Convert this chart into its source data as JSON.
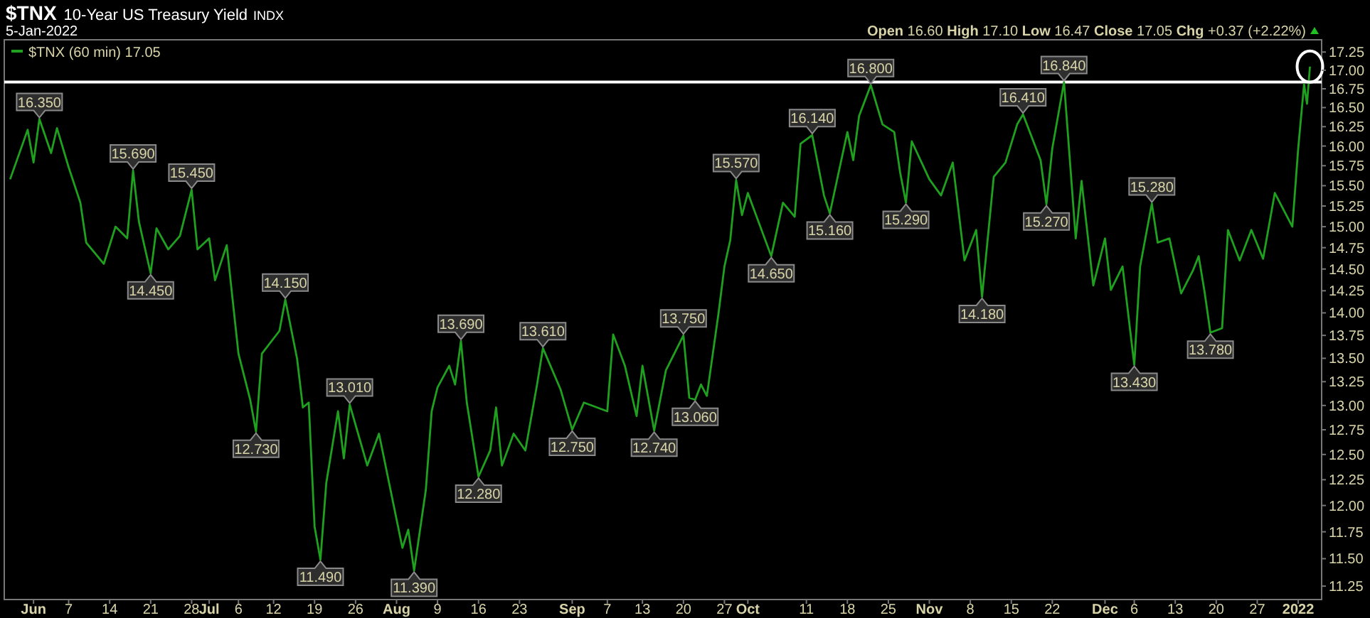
{
  "chart_data": {
    "type": "line",
    "title": "$TNX",
    "subtitle": "10-Year US Treasury Yield",
    "annotations": [
      "INDX",
      "5-Jan-2022",
      "Open 16.60 High 17.10 Low 16.47 Close 17.05 Chg +0.37 (+2.22%)",
      {
        "text": "16.350",
        "x": "2021-06-02",
        "y": 16.35
      },
      {
        "text": "15.690",
        "x": "2021-06-18",
        "y": 15.69
      },
      {
        "text": "15.450",
        "x": "2021-06-28",
        "y": 15.45
      },
      {
        "text": "14.450",
        "x": "2021-06-21",
        "y": 14.45
      },
      {
        "text": "14.150",
        "x": "2021-07-14",
        "y": 14.15
      },
      {
        "text": "12.730",
        "x": "2021-07-09",
        "y": 12.73
      },
      {
        "text": "13.010",
        "x": "2021-07-25",
        "y": 13.01
      },
      {
        "text": "11.490",
        "x": "2021-07-20",
        "y": 11.49
      },
      {
        "text": "11.390",
        "x": "2021-08-05",
        "y": 11.39
      },
      {
        "text": "13.690",
        "x": "2021-08-13",
        "y": 13.69
      },
      {
        "text": "12.280",
        "x": "2021-08-16",
        "y": 12.28
      },
      {
        "text": "13.610",
        "x": "2021-08-27",
        "y": 13.61
      },
      {
        "text": "12.750",
        "x": "2021-09-01",
        "y": 12.75
      },
      {
        "text": "12.740",
        "x": "2021-09-15",
        "y": 12.74
      },
      {
        "text": "13.750",
        "x": "2021-09-20",
        "y": 13.75
      },
      {
        "text": "13.060",
        "x": "2021-09-22",
        "y": 13.06
      },
      {
        "text": "15.570",
        "x": "2021-09-29",
        "y": 15.57
      },
      {
        "text": "14.650",
        "x": "2021-10-05",
        "y": 14.65
      },
      {
        "text": "16.140",
        "x": "2021-10-12",
        "y": 16.14
      },
      {
        "text": "15.160",
        "x": "2021-10-15",
        "y": 15.16
      },
      {
        "text": "16.800",
        "x": "2021-10-22",
        "y": 16.8
      },
      {
        "text": "15.290",
        "x": "2021-10-28",
        "y": 15.29
      },
      {
        "text": "14.180",
        "x": "2021-11-10",
        "y": 14.18
      },
      {
        "text": "16.410",
        "x": "2021-11-17",
        "y": 16.41
      },
      {
        "text": "15.270",
        "x": "2021-11-21",
        "y": 15.27
      },
      {
        "text": "16.840",
        "x": "2021-11-24",
        "y": 16.84
      },
      {
        "text": "13.430",
        "x": "2021-12-06",
        "y": 13.43
      },
      {
        "text": "15.280",
        "x": "2021-12-09",
        "y": 15.28
      },
      {
        "text": "13.780",
        "x": "2021-12-19",
        "y": 13.78
      }
    ],
    "x": [
      "2021-05-28",
      "2021-05-31",
      "2021-06-01",
      "2021-06-02",
      "2021-06-04",
      "2021-06-05",
      "2021-06-07",
      "2021-06-09",
      "2021-06-10",
      "2021-06-13",
      "2021-06-15",
      "2021-06-17",
      "2021-06-18",
      "2021-06-19",
      "2021-06-21",
      "2021-06-22",
      "2021-06-24",
      "2021-06-26",
      "2021-06-28",
      "2021-06-29",
      "2021-07-01",
      "2021-07-02",
      "2021-07-04",
      "2021-07-06",
      "2021-07-08",
      "2021-07-09",
      "2021-07-10",
      "2021-07-13",
      "2021-07-14",
      "2021-07-16",
      "2021-07-17",
      "2021-07-18",
      "2021-07-19",
      "2021-07-20",
      "2021-07-21",
      "2021-07-23",
      "2021-07-24",
      "2021-07-25",
      "2021-07-28",
      "2021-07-30",
      "2021-08-03",
      "2021-08-04",
      "2021-08-05",
      "2021-08-07",
      "2021-08-08",
      "2021-08-09",
      "2021-08-11",
      "2021-08-12",
      "2021-08-13",
      "2021-08-14",
      "2021-08-16",
      "2021-08-18",
      "2021-08-19",
      "2021-08-20",
      "2021-08-22",
      "2021-08-24",
      "2021-08-26",
      "2021-08-27",
      "2021-08-30",
      "2021-09-01",
      "2021-09-03",
      "2021-09-07",
      "2021-09-08",
      "2021-09-10",
      "2021-09-12",
      "2021-09-13",
      "2021-09-15",
      "2021-09-17",
      "2021-09-20",
      "2021-09-21",
      "2021-09-22",
      "2021-09-23",
      "2021-09-24",
      "2021-09-26",
      "2021-09-27",
      "2021-09-28",
      "2021-09-29",
      "2021-09-30",
      "2021-10-01",
      "2021-10-05",
      "2021-10-07",
      "2021-10-09",
      "2021-10-10",
      "2021-10-12",
      "2021-10-14",
      "2021-10-15",
      "2021-10-18",
      "2021-10-19",
      "2021-10-20",
      "2021-10-22",
      "2021-10-24",
      "2021-10-26",
      "2021-10-27",
      "2021-10-28",
      "2021-10-29",
      "2021-11-01",
      "2021-11-03",
      "2021-11-05",
      "2021-11-07",
      "2021-11-09",
      "2021-11-10",
      "2021-11-12",
      "2021-11-14",
      "2021-11-16",
      "2021-11-17",
      "2021-11-20",
      "2021-11-21",
      "2021-11-22",
      "2021-11-24",
      "2021-11-26",
      "2021-11-27",
      "2021-11-29",
      "2021-12-01",
      "2021-12-02",
      "2021-12-04",
      "2021-12-06",
      "2021-12-07",
      "2021-12-09",
      "2021-12-10",
      "2021-12-12",
      "2021-12-14",
      "2021-12-16",
      "2021-12-17",
      "2021-12-18",
      "2021-12-19",
      "2021-12-21",
      "2021-12-22",
      "2021-12-24",
      "2021-12-26",
      "2021-12-28",
      "2021-12-30",
      "2022-01-02",
      "2022-01-03",
      "2022-01-04",
      "2022-01-04T12:00",
      "2022-01-05"
    ],
    "series": [
      {
        "name": "$TNX (60 min) 17.05",
        "color": "#1fa01f",
        "values": [
          15.58,
          16.21,
          15.79,
          16.35,
          15.91,
          16.23,
          15.73,
          15.29,
          14.81,
          14.56,
          15.0,
          14.86,
          15.69,
          15.06,
          14.45,
          14.98,
          14.73,
          14.89,
          15.45,
          14.73,
          14.86,
          14.37,
          14.78,
          13.55,
          13.06,
          12.73,
          13.55,
          13.8,
          14.15,
          13.5,
          12.98,
          13.03,
          11.8,
          11.49,
          12.22,
          12.94,
          12.46,
          13.01,
          12.39,
          12.71,
          11.6,
          11.77,
          11.39,
          12.15,
          12.94,
          13.19,
          13.42,
          13.22,
          13.69,
          13.03,
          12.28,
          12.54,
          12.98,
          12.39,
          12.71,
          12.54,
          13.22,
          13.61,
          13.17,
          12.75,
          13.03,
          12.94,
          13.76,
          13.42,
          12.89,
          13.42,
          12.74,
          13.37,
          13.75,
          13.08,
          13.06,
          13.22,
          13.1,
          14.0,
          14.53,
          14.84,
          15.57,
          15.14,
          15.41,
          14.65,
          15.29,
          15.12,
          16.03,
          16.14,
          15.38,
          15.16,
          16.18,
          15.82,
          16.39,
          16.8,
          16.28,
          16.18,
          15.67,
          15.29,
          16.06,
          15.58,
          15.38,
          15.79,
          14.6,
          14.96,
          14.18,
          15.61,
          15.79,
          16.28,
          16.41,
          15.82,
          15.27,
          15.97,
          16.84,
          14.86,
          15.56,
          14.31,
          14.86,
          14.26,
          14.53,
          13.43,
          14.53,
          15.28,
          14.81,
          14.86,
          14.22,
          14.48,
          14.65,
          14.24,
          13.78,
          13.83,
          14.96,
          14.6,
          14.96,
          14.62,
          15.41,
          15.0,
          15.97,
          16.81,
          16.55,
          17.05
        ]
      }
    ],
    "xlim": [
      "2021-05-27",
      "2022-01-07"
    ],
    "xticks": [
      {
        "value": "2021-06-01",
        "label": "Jun"
      },
      {
        "value": "2021-06-07",
        "label": "7"
      },
      {
        "value": "2021-06-14",
        "label": "14"
      },
      {
        "value": "2021-06-21",
        "label": "21"
      },
      {
        "value": "2021-06-28",
        "label": "28"
      },
      {
        "value": "2021-07-01",
        "label": "Jul"
      },
      {
        "value": "2021-07-06",
        "label": "6"
      },
      {
        "value": "2021-07-12",
        "label": "12"
      },
      {
        "value": "2021-07-19",
        "label": "19"
      },
      {
        "value": "2021-07-26",
        "label": "26"
      },
      {
        "value": "2021-08-02",
        "label": "Aug"
      },
      {
        "value": "2021-08-09",
        "label": "9"
      },
      {
        "value": "2021-08-16",
        "label": "16"
      },
      {
        "value": "2021-08-23",
        "label": "23"
      },
      {
        "value": "2021-09-01",
        "label": "Sep"
      },
      {
        "value": "2021-09-07",
        "label": "7"
      },
      {
        "value": "2021-09-13",
        "label": "13"
      },
      {
        "value": "2021-09-20",
        "label": "20"
      },
      {
        "value": "2021-09-27",
        "label": "27"
      },
      {
        "value": "2021-10-01",
        "label": "Oct"
      },
      {
        "value": "2021-10-11",
        "label": "11"
      },
      {
        "value": "2021-10-18",
        "label": "18"
      },
      {
        "value": "2021-10-25",
        "label": "25"
      },
      {
        "value": "2021-11-01",
        "label": "Nov"
      },
      {
        "value": "2021-11-08",
        "label": "8"
      },
      {
        "value": "2021-11-15",
        "label": "15"
      },
      {
        "value": "2021-11-22",
        "label": "22"
      },
      {
        "value": "2021-12-01",
        "label": "Dec"
      },
      {
        "value": "2021-12-06",
        "label": "6"
      },
      {
        "value": "2021-12-13",
        "label": "13"
      },
      {
        "value": "2021-12-20",
        "label": "20"
      },
      {
        "value": "2021-12-27",
        "label": "27"
      },
      {
        "value": "2022-01-03",
        "label": "2022"
      }
    ],
    "ylim": [
      11.13,
      17.42
    ],
    "log": true,
    "yticks": [
      11.25,
      {
        "value": 11.5,
        "label": "11.50"
      },
      11.75,
      {
        "value": 12,
        "label": "12.00"
      },
      12.25,
      {
        "value": 12.5,
        "label": "12.50"
      },
      12.75,
      {
        "value": 13,
        "label": "13.00"
      },
      13.25,
      {
        "value": 13.5,
        "label": "13.50"
      },
      13.75,
      {
        "value": 14,
        "label": "14.00"
      },
      14.25,
      {
        "value": 14.5,
        "label": "14.50"
      },
      14.75,
      {
        "value": 15,
        "label": "15.00"
      },
      15.25,
      {
        "value": 15.5,
        "label": "15.50"
      },
      15.75,
      {
        "value": 16,
        "label": "16.00"
      },
      16.25,
      {
        "value": 16.5,
        "label": "16.50"
      },
      16.75,
      {
        "value": 17,
        "label": "17.00"
      },
      17.25
    ],
    "ref_lines": [
      {
        "axis": "y",
        "value": 16.84,
        "color": "#ffffff"
      }
    ],
    "legend": "top left",
    "grid": false
  }
}
